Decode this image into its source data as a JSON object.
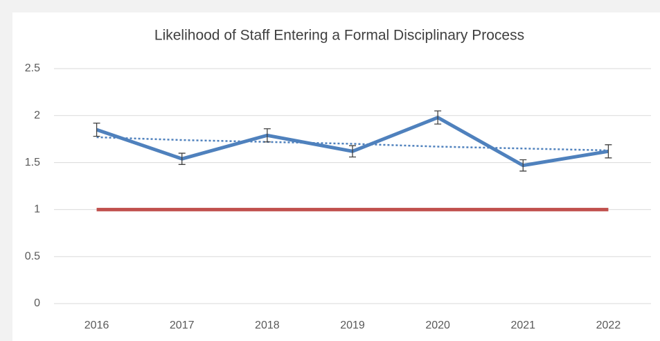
{
  "chart_data": {
    "type": "line",
    "title": "Likelihood of Staff Entering a Formal Disciplinary Process",
    "categories": [
      "2016",
      "2017",
      "2018",
      "2019",
      "2020",
      "2021",
      "2022"
    ],
    "series": [
      {
        "color": "#4f81bd",
        "values": [
          1.85,
          1.54,
          1.79,
          1.62,
          1.98,
          1.47,
          1.62
        ],
        "errors": [
          0.07,
          0.06,
          0.07,
          0.06,
          0.07,
          0.06,
          0.07
        ]
      },
      {
        "color": "#4f81bd",
        "style": "dotted",
        "values": [
          1.77,
          1.74,
          1.72,
          1.7,
          1.67,
          1.65,
          1.63
        ]
      },
      {
        "color": "#c0504d",
        "values": [
          1,
          1,
          1,
          1,
          1,
          1,
          1
        ]
      }
    ],
    "ylim": [
      0,
      2.5
    ],
    "yticks": [
      0,
      0.5,
      1,
      1.5,
      2,
      2.5
    ],
    "grid": true
  }
}
